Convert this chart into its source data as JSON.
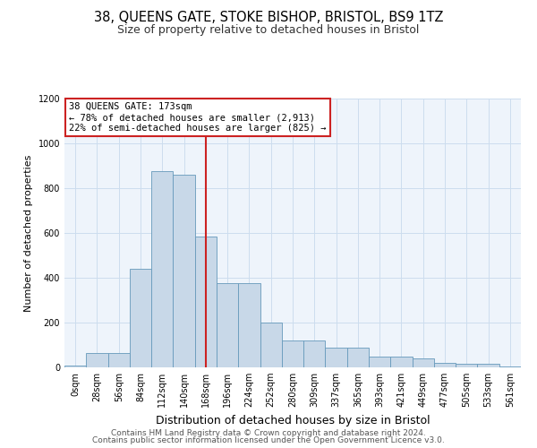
{
  "title1": "38, QUEENS GATE, STOKE BISHOP, BRISTOL, BS9 1TZ",
  "title2": "Size of property relative to detached houses in Bristol",
  "xlabel": "Distribution of detached houses by size in Bristol",
  "ylabel": "Number of detached properties",
  "categories": [
    "0sqm",
    "28sqm",
    "56sqm",
    "84sqm",
    "112sqm",
    "140sqm",
    "168sqm",
    "196sqm",
    "224sqm",
    "252sqm",
    "280sqm",
    "309sqm",
    "337sqm",
    "365sqm",
    "393sqm",
    "421sqm",
    "449sqm",
    "477sqm",
    "505sqm",
    "533sqm",
    "561sqm"
  ],
  "values": [
    10,
    65,
    65,
    440,
    875,
    860,
    585,
    375,
    375,
    200,
    120,
    120,
    90,
    90,
    50,
    50,
    40,
    20,
    15,
    15,
    5
  ],
  "bar_color": "#c8d8e8",
  "bar_edgecolor": "#6699bb",
  "grid_color": "#ccddee",
  "bg_color": "#eef4fb",
  "vline_x": 6,
  "vline_color": "#cc2222",
  "annotation_text1": "38 QUEENS GATE: 173sqm",
  "annotation_text2": "← 78% of detached houses are smaller (2,913)",
  "annotation_text3": "22% of semi-detached houses are larger (825) →",
  "annotation_box_color": "#ffffff",
  "annotation_border_color": "#cc2222",
  "ylim": [
    0,
    1200
  ],
  "yticks": [
    0,
    200,
    400,
    600,
    800,
    1000,
    1200
  ],
  "footer1": "Contains HM Land Registry data © Crown copyright and database right 2024.",
  "footer2": "Contains public sector information licensed under the Open Government Licence v3.0.",
  "title1_fontsize": 10.5,
  "title2_fontsize": 9,
  "xlabel_fontsize": 9,
  "ylabel_fontsize": 8,
  "tick_fontsize": 7,
  "annotation_fontsize": 7.5,
  "footer_fontsize": 6.5
}
